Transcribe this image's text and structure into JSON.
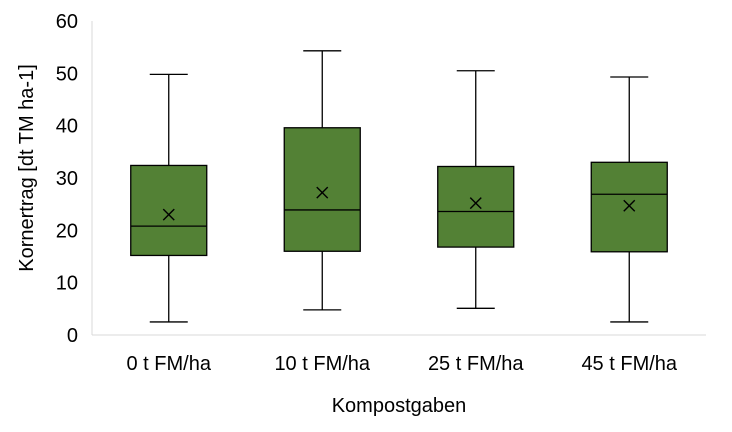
{
  "chart_data": {
    "type": "boxplot",
    "title": "",
    "xlabel": "Kompostgaben",
    "ylabel": "Kornertrag [dt TM ha-1]",
    "ylim": [
      0,
      60
    ],
    "yticks": [
      0,
      10,
      20,
      30,
      40,
      50,
      60
    ],
    "grid": false,
    "legend": "none",
    "box_color": "#538135",
    "line_color": "#000000",
    "axis_color": "#d9d9d9",
    "categories": [
      "0 t FM/ha",
      "10 t FM/ha",
      "25 t FM/ha",
      "45 t FM/ha"
    ],
    "boxes": [
      {
        "category": "0 t FM/ha",
        "min": 2.5,
        "q1": 15.2,
        "median": 20.8,
        "q3": 32.4,
        "max": 49.8,
        "mean": 23.0
      },
      {
        "category": "10 t FM/ha",
        "min": 4.8,
        "q1": 16.0,
        "median": 23.9,
        "q3": 39.6,
        "max": 54.3,
        "mean": 27.2
      },
      {
        "category": "25 t FM/ha",
        "min": 5.1,
        "q1": 16.8,
        "median": 23.6,
        "q3": 32.2,
        "max": 50.5,
        "mean": 25.2
      },
      {
        "category": "45 t FM/ha",
        "min": 2.5,
        "q1": 15.9,
        "median": 26.9,
        "q3": 33.0,
        "max": 49.3,
        "mean": 24.7
      }
    ]
  }
}
